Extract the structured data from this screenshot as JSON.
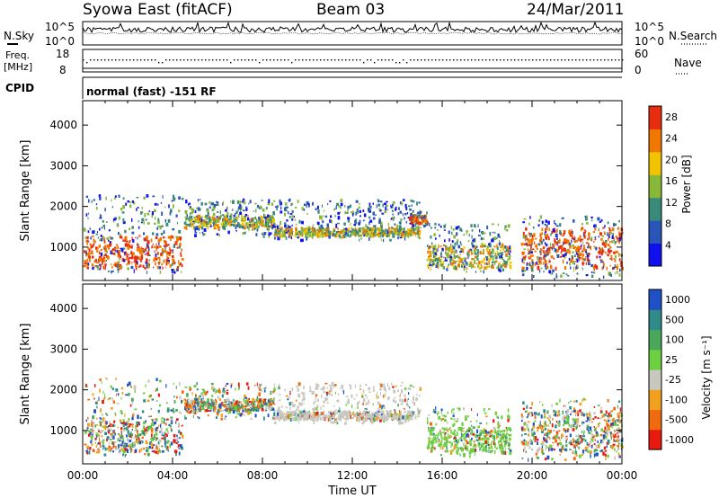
{
  "header": {
    "title": "Syowa East (fitACF)",
    "beam": "Beam 03",
    "date": "24/Mar/2011"
  },
  "top_panels": {
    "nsky_label": "N.Sky",
    "nsearch_label": "N.Search",
    "nsky_ticks": [
      "10^5",
      "10^0"
    ],
    "nsearch_ticks": [
      "10^5",
      "10^0"
    ],
    "freq_label_1": "Freq.",
    "freq_label_2": "[MHz]",
    "freq_ticks": [
      "18",
      "8"
    ],
    "nave_label": "Nave",
    "nave_ticks": [
      "60",
      "0"
    ],
    "cpid_label": "CPID",
    "cpid_text": "normal (fast) -151 RF"
  },
  "chart_data": [
    {
      "type": "heatmap",
      "title": "",
      "xlabel": "Time UT",
      "ylabel": "Slant Range [km]",
      "x_ticks": [
        "00:00",
        "04:00",
        "08:00",
        "12:00",
        "16:00",
        "20:00",
        "00:00"
      ],
      "xlim_hours": [
        0,
        24
      ],
      "ylim": [
        180,
        4600
      ],
      "y_ticks": [
        1000,
        2000,
        3000,
        4000
      ],
      "colorbar": {
        "label": "Power [dB]",
        "ticks": [
          4,
          8,
          12,
          16,
          20,
          24,
          28
        ],
        "range": [
          0,
          30
        ],
        "colors": [
          "#1010ee",
          "#2a55b8",
          "#3a8a7a",
          "#88b838",
          "#f2c400",
          "#f07800",
          "#e82c10"
        ]
      },
      "scatter_bands": [
        {
          "t0": 0.0,
          "t1": 4.4,
          "r0": 400,
          "r1": 2300,
          "core_r0": 500,
          "core_r1": 1300
        },
        {
          "t0": 4.5,
          "t1": 8.5,
          "r0": 1300,
          "r1": 2200,
          "core_r0": 1500,
          "core_r1": 1800
        },
        {
          "t0": 8.5,
          "t1": 15.0,
          "r0": 1200,
          "r1": 2200,
          "core_r0": 1300,
          "core_r1": 1500
        },
        {
          "t0": 14.5,
          "t1": 15.3,
          "r0": 1500,
          "r1": 1900,
          "core_r0": 1600,
          "core_r1": 1800
        },
        {
          "t0": 15.3,
          "t1": 19.0,
          "r0": 400,
          "r1": 1600,
          "core_r0": 500,
          "core_r1": 1100
        },
        {
          "t0": 19.5,
          "t1": 24.0,
          "r0": 300,
          "r1": 1800,
          "core_r0": 500,
          "core_r1": 1500
        }
      ]
    },
    {
      "type": "heatmap",
      "title": "",
      "xlabel": "Time UT",
      "ylabel": "Slant Range [km]",
      "x_ticks": [
        "00:00",
        "04:00",
        "08:00",
        "12:00",
        "16:00",
        "20:00",
        "00:00"
      ],
      "xlim_hours": [
        0,
        24
      ],
      "ylim": [
        180,
        4600
      ],
      "y_ticks": [
        1000,
        2000,
        3000,
        4000
      ],
      "colorbar": {
        "label": "Velocity [m s⁻¹]",
        "ticks": [
          1000,
          500,
          100,
          25,
          -25,
          -100,
          -500,
          -1000
        ],
        "colors": [
          "#2050c8",
          "#2f8a8a",
          "#4aa85a",
          "#6dd040",
          "#c8c8c0",
          "#f2a020",
          "#f06a10",
          "#e81a10"
        ]
      },
      "scatter_bands": [
        {
          "t0": 0.0,
          "t1": 4.4,
          "r0": 400,
          "r1": 2300,
          "core_r0": 500,
          "core_r1": 1300
        },
        {
          "t0": 4.5,
          "t1": 8.5,
          "r0": 1300,
          "r1": 2200,
          "core_r0": 1500,
          "core_r1": 1800
        },
        {
          "t0": 8.5,
          "t1": 15.0,
          "r0": 1200,
          "r1": 2200,
          "core_r0": 1300,
          "core_r1": 1500
        },
        {
          "t0": 15.3,
          "t1": 19.0,
          "r0": 400,
          "r1": 1600,
          "core_r0": 500,
          "core_r1": 1100
        },
        {
          "t0": 19.5,
          "t1": 24.0,
          "r0": 300,
          "r1": 1800,
          "core_r0": 500,
          "core_r1": 1500
        }
      ]
    }
  ]
}
